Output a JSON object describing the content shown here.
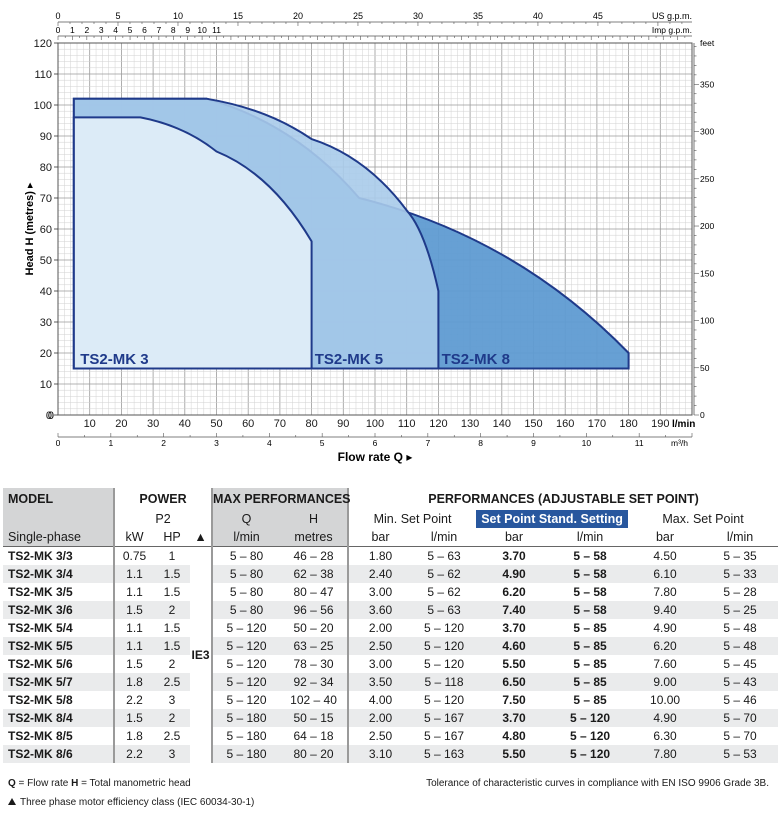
{
  "chart_data": {
    "type": "area",
    "xlabel": "Flow rate Q",
    "ylabel": "Head H (metres)",
    "x_unit": "l/min",
    "xlim": [
      0,
      200
    ],
    "ylim": [
      0,
      120
    ],
    "x_ticks": [
      0,
      10,
      20,
      30,
      40,
      50,
      60,
      70,
      80,
      90,
      100,
      110,
      120,
      130,
      140,
      150,
      160,
      170,
      180,
      190
    ],
    "y_ticks": [
      0,
      10,
      20,
      30,
      40,
      50,
      60,
      70,
      80,
      90,
      100,
      110,
      120
    ],
    "grid": true,
    "secondary_axes": {
      "top_usgpm": {
        "label": "US g.p.m.",
        "ticks": [
          0,
          5,
          10,
          15,
          20,
          25,
          30,
          35,
          40,
          45
        ]
      },
      "top_impgpm": {
        "label": "Imp g.p.m.",
        "ticks": [
          0,
          1,
          2,
          3,
          4,
          5,
          6,
          7,
          8,
          9,
          10,
          11
        ]
      },
      "bottom_m3h": {
        "label": "m³/h",
        "ticks": [
          0,
          1,
          2,
          3,
          4,
          5,
          6,
          7,
          8,
          9,
          10,
          11
        ]
      },
      "right_feet": {
        "label": "feet",
        "ticks": [
          0,
          50,
          100,
          150,
          200,
          250,
          300,
          350
        ]
      }
    },
    "series": [
      {
        "name": "TS2-MK 8",
        "color": "#5f9bd2",
        "points": [
          [
            5,
            15
          ],
          [
            5,
            102
          ],
          [
            47,
            102
          ],
          [
            95,
            70
          ],
          [
            180,
            20
          ],
          [
            180,
            15
          ]
        ]
      },
      {
        "name": "TS2-MK 5",
        "color": "#a9cbea",
        "points": [
          [
            5,
            15
          ],
          [
            5,
            102
          ],
          [
            47,
            102
          ],
          [
            80,
            89
          ],
          [
            110,
            66
          ],
          [
            120,
            40
          ],
          [
            120,
            15
          ]
        ]
      },
      {
        "name": "TS2-MK 3",
        "color": "#e2eef8",
        "points": [
          [
            5,
            15
          ],
          [
            5,
            96
          ],
          [
            26,
            96
          ],
          [
            50,
            85
          ],
          [
            80,
            56
          ],
          [
            80,
            15
          ]
        ]
      }
    ]
  },
  "table": {
    "header": {
      "model": "MODEL",
      "power": "POWER",
      "max_perf": "MAX PERFORMANCES",
      "perf_adj": "PERFORMANCES (ADJUSTABLE SET POINT)",
      "p2": "P2",
      "q": "Q",
      "h": "H",
      "min_sp": "Min. Set Point",
      "std_sp": "Set Point Stand. Setting",
      "max_sp": "Max. Set Point",
      "single_phase": "Single-phase",
      "kw": "kW",
      "hp": "HP",
      "tri": "▲",
      "lmin": "l/min",
      "metres": "metres",
      "bar": "bar"
    },
    "ie_class": "IE3",
    "rows": [
      {
        "model": "TS2-MK 3/3",
        "kw": "0.75",
        "hp": "1",
        "q": "5 – 80",
        "h": "46 – 28",
        "min_bar": "1.80",
        "min_q": "5 – 63",
        "std_bar": "3.70",
        "std_q": "5 – 58",
        "max_bar": "4.50",
        "max_q": "5 – 35"
      },
      {
        "model": "TS2-MK 3/4",
        "kw": "1.1",
        "hp": "1.5",
        "q": "5 – 80",
        "h": "62 – 38",
        "min_bar": "2.40",
        "min_q": "5 – 62",
        "std_bar": "4.90",
        "std_q": "5 – 58",
        "max_bar": "6.10",
        "max_q": "5 – 33"
      },
      {
        "model": "TS2-MK 3/5",
        "kw": "1.1",
        "hp": "1.5",
        "q": "5 – 80",
        "h": "80 – 47",
        "min_bar": "3.00",
        "min_q": "5 – 62",
        "std_bar": "6.20",
        "std_q": "5 – 58",
        "max_bar": "7.80",
        "max_q": "5 – 28"
      },
      {
        "model": "TS2-MK 3/6",
        "kw": "1.5",
        "hp": "2",
        "q": "5 – 80",
        "h": "96 – 56",
        "min_bar": "3.60",
        "min_q": "5 – 63",
        "std_bar": "7.40",
        "std_q": "5 – 58",
        "max_bar": "9.40",
        "max_q": "5 – 25"
      },
      {
        "model": "TS2-MK 5/4",
        "kw": "1.1",
        "hp": "1.5",
        "q": "5 – 120",
        "h": "50 – 20",
        "min_bar": "2.00",
        "min_q": "5 – 120",
        "std_bar": "3.70",
        "std_q": "5 – 85",
        "max_bar": "4.90",
        "max_q": "5 – 48"
      },
      {
        "model": "TS2-MK 5/5",
        "kw": "1.1",
        "hp": "1.5",
        "q": "5 – 120",
        "h": "63 – 25",
        "min_bar": "2.50",
        "min_q": "5 – 120",
        "std_bar": "4.60",
        "std_q": "5 – 85",
        "max_bar": "6.20",
        "max_q": "5 – 48"
      },
      {
        "model": "TS2-MK 5/6",
        "kw": "1.5",
        "hp": "2",
        "q": "5 – 120",
        "h": "78 – 30",
        "min_bar": "3.00",
        "min_q": "5 – 120",
        "std_bar": "5.50",
        "std_q": "5 – 85",
        "max_bar": "7.60",
        "max_q": "5 – 45"
      },
      {
        "model": "TS2-MK 5/7",
        "kw": "1.8",
        "hp": "2.5",
        "q": "5 – 120",
        "h": "92 – 34",
        "min_bar": "3.50",
        "min_q": "5 – 118",
        "std_bar": "6.50",
        "std_q": "5 – 85",
        "max_bar": "9.00",
        "max_q": "5 – 43"
      },
      {
        "model": "TS2-MK 5/8",
        "kw": "2.2",
        "hp": "3",
        "q": "5 – 120",
        "h": "102 – 40",
        "min_bar": "4.00",
        "min_q": "5 – 120",
        "std_bar": "7.50",
        "std_q": "5 – 85",
        "max_bar": "10.00",
        "max_q": "5 – 46"
      },
      {
        "model": "TS2-MK 8/4",
        "kw": "1.5",
        "hp": "2",
        "q": "5 – 180",
        "h": "50 – 15",
        "min_bar": "2.00",
        "min_q": "5 – 167",
        "std_bar": "3.70",
        "std_q": "5 – 120",
        "max_bar": "4.90",
        "max_q": "5 – 70"
      },
      {
        "model": "TS2-MK 8/5",
        "kw": "1.8",
        "hp": "2.5",
        "q": "5 – 180",
        "h": "64 – 18",
        "min_bar": "2.50",
        "min_q": "5 – 167",
        "std_bar": "4.80",
        "std_q": "5 – 120",
        "max_bar": "6.30",
        "max_q": "5 – 70"
      },
      {
        "model": "TS2-MK 8/6",
        "kw": "2.2",
        "hp": "3",
        "q": "5 – 180",
        "h": "80 – 20",
        "min_bar": "3.10",
        "min_q": "5 – 163",
        "std_bar": "5.50",
        "std_q": "5 – 120",
        "max_bar": "7.80",
        "max_q": "5 – 53"
      }
    ]
  },
  "notes": {
    "q_symbol": "Q",
    "q_text": " = Flow rate  ",
    "h_symbol": "H",
    "h_text": " = Total manometric head",
    "tolerance": "Tolerance of characteristic curves in compliance with EN ISO 9906 Grade 3B.",
    "ie_note": "Three phase motor efficiency class (IEC 60034-30-1)"
  }
}
